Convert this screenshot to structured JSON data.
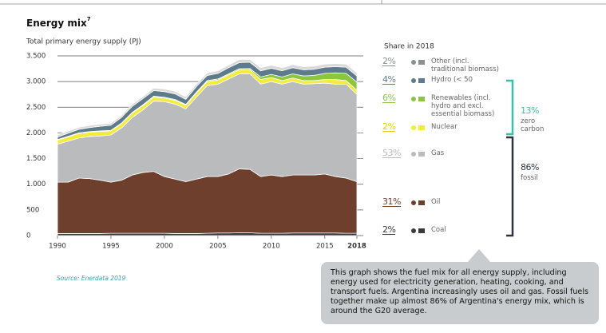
{
  "chart_data": {
    "type": "stacked_area",
    "title": "Energy mix",
    "title_footnote": "7",
    "subtitle": "Total primary energy supply (PJ)",
    "share_heading": "Share in 2018",
    "source": "Source: Enerdata 2019",
    "note": "This graph shows the fuel mix for all energy supply, including energy used for electricity generation, heating, cooking, and transport fuels. Argentina increasingly uses oil and gas. Fossil fuels together make up almost 86% of Argentina's energy mix, which is around the G20 average.",
    "x": [
      1990,
      1991,
      1992,
      1993,
      1994,
      1995,
      1996,
      1997,
      1998,
      1999,
      2000,
      2001,
      2002,
      2003,
      2004,
      2005,
      2006,
      2007,
      2008,
      2009,
      2010,
      2011,
      2012,
      2013,
      2014,
      2015,
      2016,
      2017,
      2018
    ],
    "xlim": [
      1990,
      2018
    ],
    "xticks": [
      1990,
      1995,
      2000,
      2005,
      2010,
      2015,
      2018
    ],
    "ylim": [
      0,
      3500
    ],
    "yticks": [
      0,
      500,
      {
        "value": 1000,
        "label": "1.000"
      },
      {
        "value": 1500,
        "label": "1.500"
      },
      {
        "value": 2000,
        "label": "2.000"
      },
      {
        "value": 2500,
        "label": "2.500"
      },
      {
        "value": 3000,
        "label": "3.000"
      },
      {
        "value": 3500,
        "label": "3.500"
      }
    ],
    "grid": true,
    "series": [
      {
        "name": "Coal",
        "color": "#3a3a3a",
        "share": 2,
        "share_label": "2%",
        "values": [
          40,
          40,
          40,
          40,
          40,
          45,
          45,
          45,
          45,
          45,
          45,
          40,
          40,
          40,
          45,
          50,
          50,
          55,
          55,
          45,
          45,
          45,
          50,
          50,
          50,
          50,
          50,
          45,
          45
        ]
      },
      {
        "name": "Oil",
        "color": "#6e3f2c",
        "share": 31,
        "share_label": "31%",
        "values": [
          1000,
          1000,
          1080,
          1070,
          1040,
          995,
          1035,
          1135,
          1185,
          1205,
          1105,
          1060,
          1010,
          1060,
          1105,
          1100,
          1150,
          1245,
          1235,
          1105,
          1135,
          1105,
          1130,
          1130,
          1130,
          1150,
          1100,
          1075,
          1005
        ]
      },
      {
        "name": "Gas",
        "color": "#b9bbbd",
        "share": 53,
        "share_label": "53%",
        "values": [
          740,
          800,
          780,
          820,
          860,
          920,
          1020,
          1120,
          1220,
          1370,
          1460,
          1460,
          1420,
          1600,
          1770,
          1800,
          1850,
          1850,
          1860,
          1800,
          1820,
          1800,
          1820,
          1770,
          1780,
          1770,
          1800,
          1830,
          1700
        ]
      },
      {
        "name": "Nuclear",
        "color": "#f3ec3c",
        "share": 2,
        "share_label": "2%",
        "values": [
          80,
          85,
          90,
          85,
          90,
          80,
          85,
          90,
          85,
          80,
          70,
          75,
          70,
          80,
          80,
          80,
          80,
          80,
          80,
          90,
          80,
          70,
          70,
          70,
          60,
          70,
          90,
          70,
          80
        ]
      },
      {
        "name": "Renewables (incl. hydro and excl. essential biomass)",
        "color": "#8cc63f",
        "share": 6,
        "share_label": "6%",
        "values": [
          10,
          10,
          10,
          10,
          10,
          10,
          10,
          10,
          15,
          15,
          15,
          15,
          15,
          15,
          20,
          20,
          20,
          20,
          25,
          50,
          60,
          70,
          80,
          90,
          100,
          120,
          130,
          140,
          160
        ]
      },
      {
        "name": "Hydro (< 50",
        "color": "#5d7b8a",
        "share": 4,
        "share_label": "4%",
        "values": [
          50,
          60,
          70,
          80,
          90,
          100,
          110,
          120,
          120,
          110,
          110,
          110,
          100,
          110,
          100,
          110,
          120,
          120,
          120,
          120,
          120,
          120,
          120,
          120,
          120,
          120,
          120,
          120,
          120
        ]
      },
      {
        "name": "Other (incl. traditional biomass)",
        "color": "#d9d9d9",
        "share": 2,
        "share_label": "2%",
        "values": [
          40,
          40,
          40,
          40,
          40,
          40,
          40,
          40,
          40,
          50,
          50,
          50,
          50,
          50,
          50,
          50,
          50,
          60,
          60,
          60,
          60,
          60,
          60,
          60,
          60,
          60,
          60,
          60,
          60
        ]
      }
    ],
    "groups": [
      {
        "value": 13,
        "label": "13%",
        "name": "zero carbon",
        "color": "#3dbfa7"
      },
      {
        "value": 86,
        "label": "86%",
        "name": "fossil",
        "color": "#2d3440"
      }
    ]
  }
}
